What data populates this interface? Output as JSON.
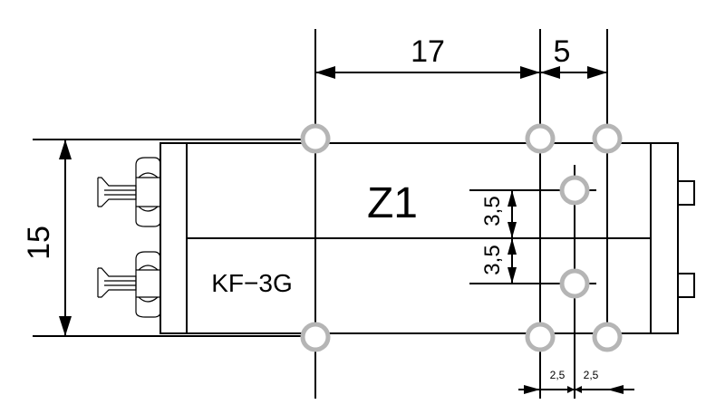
{
  "drawing": {
    "component_label": "Z1",
    "model_label": "KF−3G",
    "dimensions": {
      "top_span_left": "17",
      "top_span_right": "5",
      "left_height": "15",
      "vertical_pitch_top": "3,5",
      "vertical_pitch_bottom": "3,5",
      "bottom_offset_left": "2,5",
      "bottom_offset_right": "2,5"
    }
  }
}
